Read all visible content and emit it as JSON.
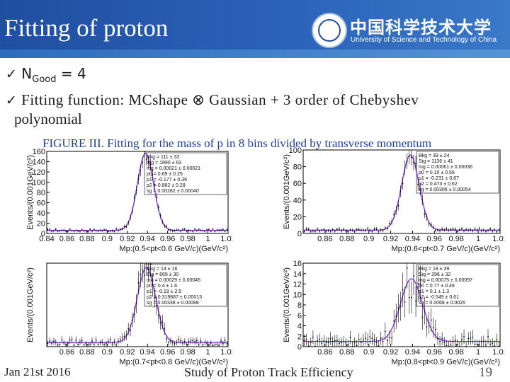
{
  "header": {
    "title": "Fitting of proton",
    "logo_icon": "university-seal-icon",
    "university_cn": "中国科学技术大学",
    "university_en": "University of Science and Technology of China"
  },
  "bullets": {
    "b1_label": "N",
    "b1_sub": "Good",
    "b1_value": " = 4",
    "b2_line1": "Fitting function: MCshape ⊗ Gaussian + 3 order of Chebyshev",
    "b2_line2": "polynomial"
  },
  "figure_caption": "FIGURE III. Fitting for the mass of p in 8 bins divided by transverse momentum",
  "chart_data": [
    {
      "type": "scatter",
      "ylabel": "Events/(0.001GeV/c²)",
      "xlabel": "Mp:(0.5<pt<0.6 GeV/c)(GeV/c²)",
      "xlim": [
        0.84,
        1.02
      ],
      "ylim": [
        0,
        160
      ],
      "xticks": [
        "0.84",
        "0.86",
        "0.88",
        "0.9",
        "0.92",
        "0.94",
        "0.96",
        "0.98",
        "1",
        "1.02"
      ],
      "yticks": [
        0,
        20,
        40,
        60,
        80,
        100,
        120,
        140,
        160
      ],
      "peak": 0.938,
      "peak_value": 150,
      "width": 0.008,
      "bkg": 6,
      "stats": [
        "Bkg = 111 ± 33",
        "Sig = 1890 ± 63",
        "mg = 0.00021 ± 0.00021",
        "p0 = 0.69 ± 0.25",
        "p1 = -0.177 ± 0.36",
        "p2 = 0.882 ± 0.28",
        "sg = 0.00282 ± 0.00040"
      ]
    },
    {
      "type": "scatter",
      "ylabel": "Events/(0.001GeV/c²)",
      "xlabel": "Mp:(0.6<pt<0.7 GeV/c)(GeV/c²)",
      "xlim": [
        0.84,
        1.02
      ],
      "ylim": [
        0,
        100
      ],
      "xticks": [
        "0.86",
        "0.88",
        "0.9",
        "0.92",
        "0.94",
        "0.96",
        "0.98",
        "1",
        "1.02"
      ],
      "yticks": [
        0,
        20,
        40,
        60,
        80,
        100
      ],
      "peak": 0.938,
      "peak_value": 90,
      "width": 0.008,
      "bkg": 4,
      "stats": [
        "Bkg = 39 ± 24",
        "Sig = 1136 ± 41",
        "mg = 0.00061 ± 0.00036",
        "p0 = 0.10 ± 0.59",
        "p1 = -0.231 ± 0.87",
        "p2 = 0.473 ± 0.62",
        "sg = 0.00306 ± 0.00054"
      ]
    },
    {
      "type": "scatter",
      "ylabel": "Events/(0.001GeV/c²)",
      "xlabel": "Mp:(0.7<pt<0.8 GeV/c)(GeV/c²)",
      "xlim": [
        0.84,
        1.02
      ],
      "ylim": [
        0,
        40
      ],
      "xticks": [
        "0.86",
        "0.88",
        "0.9",
        "0.92",
        "0.94",
        "0.96",
        "0.98",
        "1",
        "1.02"
      ],
      "yticks": [],
      "peak": 0.939,
      "peak_value": 36,
      "width": 0.009,
      "bkg": 2,
      "stats": [
        "Bkg = 14 ± 16",
        "Sig = 669 ± 30",
        "mg = 0.00029 ± 0.00045",
        "p0 = 0.4 ± 1.6",
        "p1 = -0.19 ± 2.5",
        "p2 = 0.319887 ± 0.00013",
        "sg = 0.00338 ± 0.00088"
      ]
    },
    {
      "type": "scatter",
      "ylabel": "Events/(0.001GeV/c²)",
      "xlabel": "Mp:(0.8<pt<0.9 GeV/c)(GeV/c²)",
      "xlim": [
        0.84,
        1.02
      ],
      "ylim": [
        0,
        16
      ],
      "xticks": [
        "0.86",
        "0.88",
        "0.9",
        "0.92",
        "0.94",
        "0.96",
        "0.98",
        "1",
        "1.02"
      ],
      "yticks": [
        0,
        2,
        4,
        6,
        8,
        10,
        12,
        14,
        16
      ],
      "peak": 0.939,
      "peak_value": 12,
      "width": 0.01,
      "bkg": 1,
      "stats": [
        "Bkg = 18 ± 39",
        "Sig = 296 ± 32",
        "mg = 0.00075 ± 0.00097",
        "p0 = 0.77 ± 0.48",
        "p1 = 0.1 ± 1.3",
        "p2 = -0.549 ± 0.61",
        "sg = 0.0068 ± 0.0026"
      ]
    }
  ],
  "footer": {
    "date": "Jan 21st 2016",
    "title": "Study of Proton Track Efficiency",
    "page": "19"
  }
}
